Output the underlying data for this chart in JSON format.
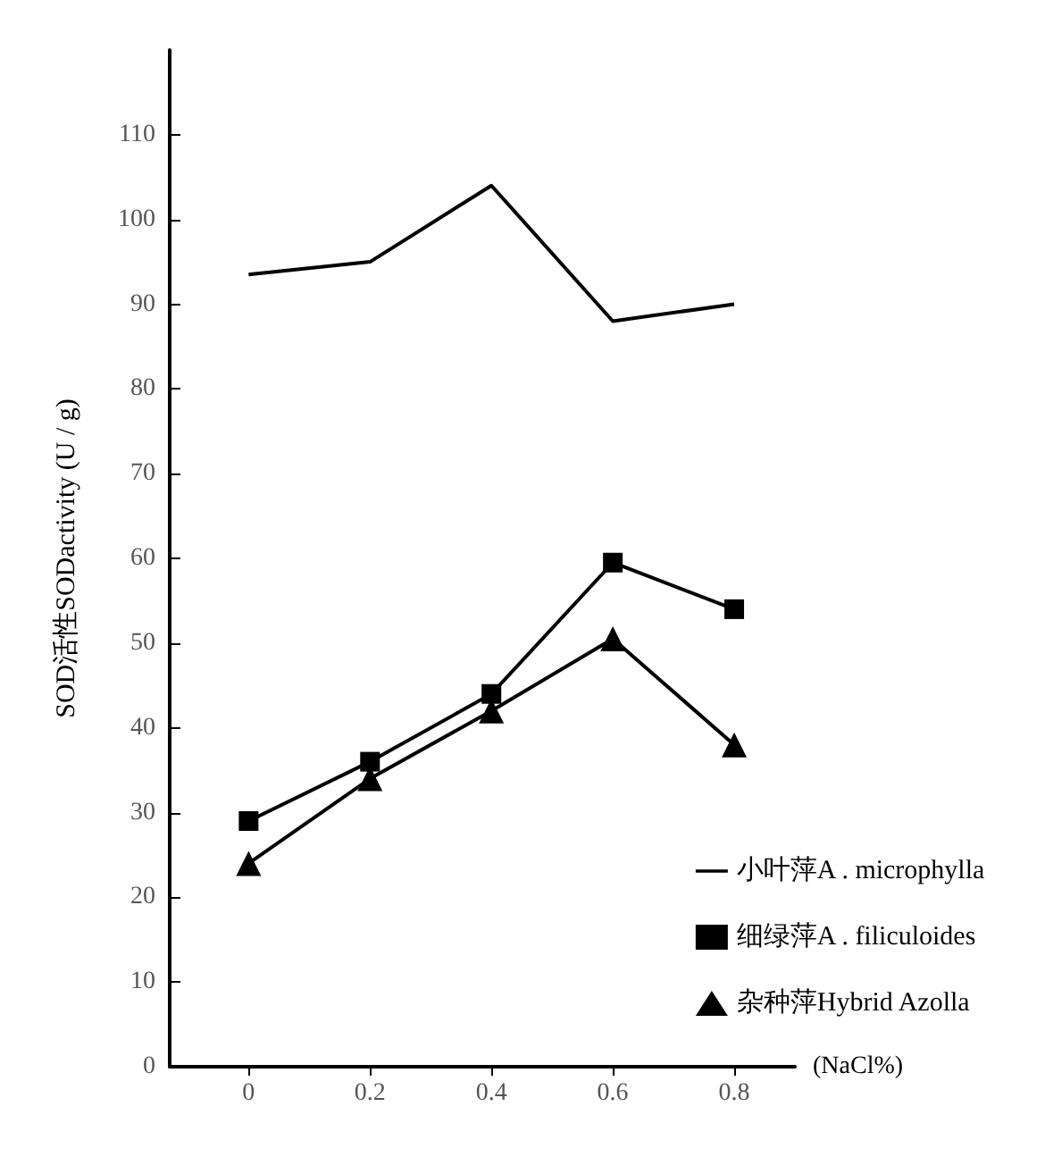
{
  "chart_data": {
    "type": "line",
    "ylabel": "SOD活性SODactivity (U / g)",
    "xlabel": "(NaCl%)",
    "x": [
      0,
      0.2,
      0.4,
      0.6,
      0.8
    ],
    "xlim": [
      -0.13,
      0.9
    ],
    "xticks": [
      0,
      0.2,
      0.4,
      0.6,
      0.8
    ],
    "ylim": [
      0,
      120
    ],
    "yticks": [
      0,
      10,
      20,
      30,
      40,
      50,
      60,
      70,
      80,
      90,
      100,
      110
    ],
    "grid": false,
    "legend": "bottom right",
    "line_style": "solid",
    "series": [
      {
        "name": "小叶萍A . microphylla",
        "color": "#000000",
        "marker": "none",
        "values": [
          93.5,
          95,
          104,
          88,
          90
        ]
      },
      {
        "name": "细绿萍A . filiculoides",
        "color": "#000000",
        "marker": "square",
        "values": [
          29,
          36,
          44,
          59.5,
          54
        ]
      },
      {
        "name": "杂种萍Hybrid Azolla",
        "color": "#000000",
        "marker": "triangle",
        "values": [
          24,
          34,
          42,
          50.5,
          38
        ]
      }
    ]
  }
}
